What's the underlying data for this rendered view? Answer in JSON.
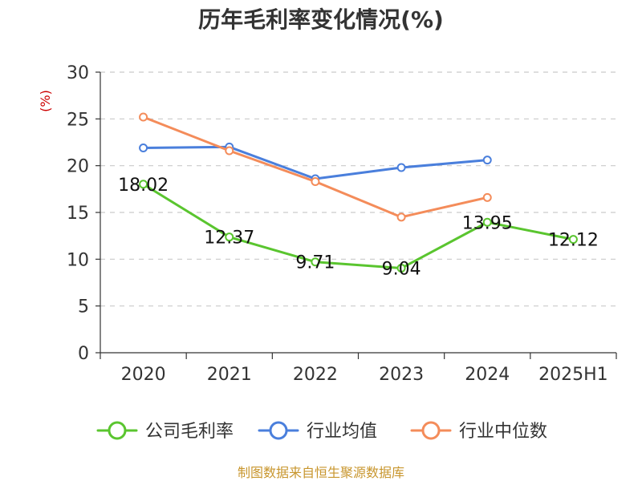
{
  "chart_data": {
    "type": "line",
    "title": "历年毛利率变化情况(%)",
    "y_unit": "(%)",
    "categories": [
      "2020",
      "2021",
      "2022",
      "2023",
      "2024",
      "2025H1"
    ],
    "y_ticks": [
      "0",
      "5",
      "10",
      "15",
      "20",
      "25",
      "30"
    ],
    "ylim": [
      0,
      30
    ],
    "grid": true,
    "legend_position": "bottom",
    "series": [
      {
        "name": "公司毛利率",
        "color": "#5ac52f",
        "values": [
          18.02,
          12.37,
          9.71,
          9.04,
          13.95,
          12.12
        ],
        "labels": [
          "18.02",
          "12.37",
          "9.71",
          "9.04",
          "13.95",
          "12.12"
        ]
      },
      {
        "name": "行业均值",
        "color": "#4a7fdc",
        "values": [
          21.9,
          22.0,
          18.6,
          19.8,
          20.6,
          null
        ]
      },
      {
        "name": "行业中位数",
        "color": "#f48c5a",
        "values": [
          25.2,
          21.6,
          18.3,
          14.5,
          16.6,
          null
        ]
      }
    ],
    "source": "制图数据来自恒生聚源数据库"
  }
}
